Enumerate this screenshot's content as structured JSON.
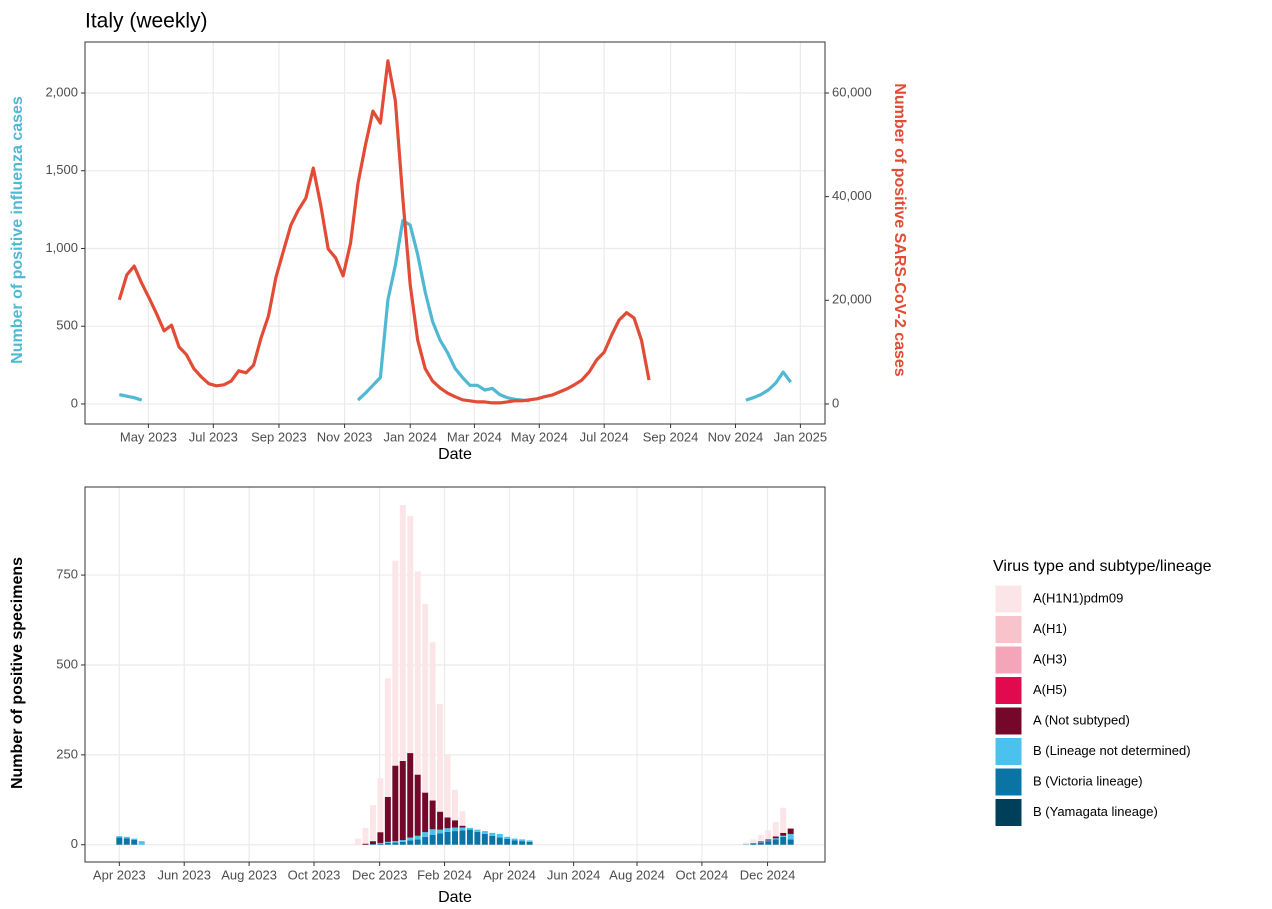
{
  "chart_data": [
    {
      "type": "line",
      "title": "Italy (weekly)",
      "xlabel": "Date",
      "ylabel": "Number of positive influenza cases",
      "y2label": "Number of positive SARS-CoV-2 cases",
      "x": [
        0,
        1,
        2,
        3,
        4,
        5,
        6,
        7,
        8,
        9,
        10,
        11,
        12,
        13,
        14,
        15,
        16,
        17,
        18,
        19,
        20,
        21,
        22,
        23,
        24,
        25,
        26,
        27,
        28,
        29,
        30,
        31,
        32,
        33,
        34,
        35,
        36,
        37,
        38,
        39,
        40,
        41,
        42,
        43,
        44,
        45,
        46,
        47,
        48,
        49,
        50,
        51,
        52,
        53,
        54,
        55,
        56,
        57,
        58,
        59,
        60,
        61,
        62,
        63,
        64,
        65,
        66,
        67,
        68,
        69,
        70,
        71,
        72,
        73,
        74,
        75,
        76,
        77,
        78,
        79,
        80,
        81,
        82,
        83,
        84,
        85,
        86,
        87,
        88,
        89,
        90
      ],
      "xlim": [
        -4.6,
        94.6
      ],
      "xticks": [
        {
          "value": 3.9,
          "label": "May 2023"
        },
        {
          "value": 12.6,
          "label": "Jul 2023"
        },
        {
          "value": 21.4,
          "label": "Sep 2023"
        },
        {
          "value": 30.2,
          "label": "Nov 2023"
        },
        {
          "value": 39.0,
          "label": "Jan 2024"
        },
        {
          "value": 47.6,
          "label": "Mar 2024"
        },
        {
          "value": 56.3,
          "label": "May 2024"
        },
        {
          "value": 65.0,
          "label": "Jul 2024"
        },
        {
          "value": 73.9,
          "label": "Sep 2024"
        },
        {
          "value": 82.6,
          "label": "Nov 2024"
        },
        {
          "value": 91.3,
          "label": "Jan 2025"
        }
      ],
      "ylim": [
        -129,
        2328
      ],
      "yticks": [
        0,
        500,
        {
          "value": 1000,
          "label": "1,000"
        },
        {
          "value": 1500,
          "label": "1,500"
        },
        {
          "value": 2000,
          "label": "2,000"
        }
      ],
      "y2lim": [
        -3870,
        69840
      ],
      "y2ticks": [
        0,
        {
          "value": 20000,
          "label": "20,000"
        },
        {
          "value": 40000,
          "label": "40,000"
        },
        {
          "value": 60000,
          "label": "60,000"
        }
      ],
      "grid": true,
      "series": [
        {
          "color": "#4fb8d3",
          "axis": "y",
          "values": [
            60,
            50,
            40,
            25,
            null,
            null,
            null,
            null,
            null,
            null,
            null,
            null,
            null,
            null,
            null,
            null,
            null,
            null,
            null,
            null,
            null,
            null,
            null,
            null,
            null,
            null,
            null,
            null,
            null,
            null,
            null,
            null,
            25,
            70,
            120,
            170,
            670,
            890,
            1180,
            1150,
            960,
            720,
            530,
            410,
            330,
            230,
            170,
            120,
            120,
            90,
            100,
            60,
            40,
            30,
            25,
            20,
            null,
            null,
            null,
            null,
            null,
            null,
            null,
            null,
            null,
            null,
            null,
            null,
            null,
            null,
            null,
            null,
            null,
            null,
            null,
            null,
            null,
            null,
            null,
            null,
            null,
            null,
            null,
            null,
            25,
            40,
            60,
            90,
            135,
            205,
            140
          ]
        },
        {
          "color": "#e24b35",
          "axis": "y2",
          "values": [
            20100,
            24900,
            26600,
            23300,
            20400,
            17400,
            14100,
            15200,
            11000,
            9500,
            6800,
            5200,
            3900,
            3500,
            3700,
            4400,
            6400,
            6000,
            7500,
            12700,
            17000,
            24500,
            29500,
            34500,
            37400,
            39700,
            45500,
            38400,
            29900,
            28200,
            24700,
            31100,
            42600,
            50000,
            56500,
            54200,
            66200,
            58600,
            39700,
            23000,
            12300,
            6800,
            4400,
            3100,
            2100,
            1400,
            800,
            600,
            400,
            400,
            200,
            200,
            400,
            600,
            600,
            800,
            1000,
            1400,
            1700,
            2300,
            2900,
            3700,
            4600,
            6200,
            8500,
            10000,
            13300,
            16200,
            17600,
            16600,
            12300,
            4600,
            null,
            null,
            null,
            null,
            null,
            null,
            null,
            null,
            null,
            null,
            null,
            null,
            null,
            null,
            null,
            null,
            null,
            null,
            null
          ]
        }
      ]
    },
    {
      "type": "stacked_bar",
      "xlabel": "Date",
      "ylabel": "Number of positive specimens",
      "legend_title": "Virus type and subtype/lineage",
      "x": [
        0,
        1,
        2,
        3,
        32,
        33,
        34,
        35,
        36,
        37,
        38,
        39,
        40,
        41,
        42,
        43,
        44,
        45,
        46,
        47,
        48,
        49,
        50,
        51,
        52,
        53,
        54,
        55,
        84,
        85,
        86,
        87,
        88,
        89,
        90
      ],
      "xlim": [
        -4.6,
        94.6
      ],
      "xticks": [
        {
          "value": 0,
          "label": "Apr 2023"
        },
        {
          "value": 8.7,
          "label": "Jun 2023"
        },
        {
          "value": 17.4,
          "label": "Aug 2023"
        },
        {
          "value": 26.1,
          "label": "Oct 2023"
        },
        {
          "value": 34.9,
          "label": "Dec 2023"
        },
        {
          "value": 43.6,
          "label": "Feb 2024"
        },
        {
          "value": 52.3,
          "label": "Apr 2024"
        },
        {
          "value": 60.9,
          "label": "Jun 2024"
        },
        {
          "value": 69.4,
          "label": "Aug 2024"
        },
        {
          "value": 78.1,
          "label": "Oct 2024"
        },
        {
          "value": 86.9,
          "label": "Dec 2024"
        }
      ],
      "ylim": [
        -48,
        995
      ],
      "yticks": [
        0,
        250,
        500,
        750
      ],
      "grid": true,
      "series": [
        {
          "name": "A(H1N1)pdm09",
          "color": "#fbe5e8",
          "values": [
            0,
            0,
            0,
            0,
            17,
            44,
            100,
            150,
            330,
            570,
            712,
            660,
            565,
            525,
            440,
            300,
            175,
            85,
            40,
            0,
            0,
            0,
            0,
            0,
            0,
            0,
            0,
            0,
            5,
            10,
            18,
            25,
            40,
            70,
            0
          ]
        },
        {
          "name": "A(H1)",
          "color": "#f9c3cb",
          "values": [
            0,
            0,
            0,
            0,
            0,
            0,
            0,
            0,
            0,
            0,
            0,
            0,
            0,
            0,
            0,
            0,
            0,
            0,
            0,
            0,
            0,
            0,
            0,
            0,
            0,
            0,
            0,
            0,
            0,
            0,
            0,
            0,
            0,
            0,
            0
          ]
        },
        {
          "name": "A(H3)",
          "color": "#f4a5b9",
          "values": [
            0,
            0,
            0,
            0,
            0,
            0,
            0,
            0,
            0,
            0,
            0,
            0,
            0,
            0,
            0,
            0,
            0,
            0,
            0,
            0,
            0,
            0,
            0,
            0,
            0,
            0,
            0,
            0,
            0,
            0,
            0,
            0,
            0,
            0,
            0
          ]
        },
        {
          "name": "A(H5)",
          "color": "#e20a4e",
          "values": [
            0,
            0,
            0,
            0,
            0,
            0,
            0,
            0,
            0,
            0,
            0,
            0,
            0,
            0,
            0,
            0,
            0,
            0,
            0,
            0,
            0,
            0,
            0,
            0,
            0,
            0,
            0,
            0,
            0,
            0,
            0,
            0,
            0,
            0,
            0
          ]
        },
        {
          "name": "A (Not subtyped)",
          "color": "#75082a",
          "values": [
            0,
            0,
            0,
            0,
            0,
            3,
            8,
            30,
            125,
            210,
            220,
            235,
            170,
            110,
            80,
            50,
            30,
            20,
            5,
            0,
            0,
            0,
            0,
            0,
            0,
            0,
            0,
            0,
            0,
            1,
            2,
            3,
            5,
            8,
            15
          ]
        },
        {
          "name": "B (Lineage not determined)",
          "color": "#4bc2ee",
          "values": [
            4,
            4,
            3,
            10,
            0,
            0,
            0,
            2,
            3,
            4,
            5,
            8,
            10,
            13,
            15,
            10,
            10,
            10,
            8,
            5,
            6,
            8,
            8,
            10,
            6,
            5,
            5,
            4,
            0,
            1,
            1,
            2,
            3,
            3,
            15
          ]
        },
        {
          "name": "B (Victoria lineage)",
          "color": "#0a74a5",
          "values": [
            20,
            18,
            14,
            0,
            0,
            0,
            2,
            3,
            5,
            6,
            8,
            12,
            15,
            22,
            28,
            32,
            36,
            38,
            40,
            42,
            36,
            30,
            25,
            20,
            16,
            12,
            10,
            8,
            1,
            3,
            6,
            10,
            15,
            22,
            15
          ]
        },
        {
          "name": "B (Yamagata lineage)",
          "color": "#003f5a",
          "values": [
            0,
            0,
            0,
            0,
            0,
            0,
            0,
            0,
            0,
            0,
            0,
            0,
            0,
            0,
            0,
            0,
            0,
            0,
            0,
            0,
            0,
            0,
            0,
            0,
            0,
            0,
            0,
            0,
            0,
            0,
            0,
            0,
            0,
            0,
            0
          ]
        }
      ]
    }
  ]
}
